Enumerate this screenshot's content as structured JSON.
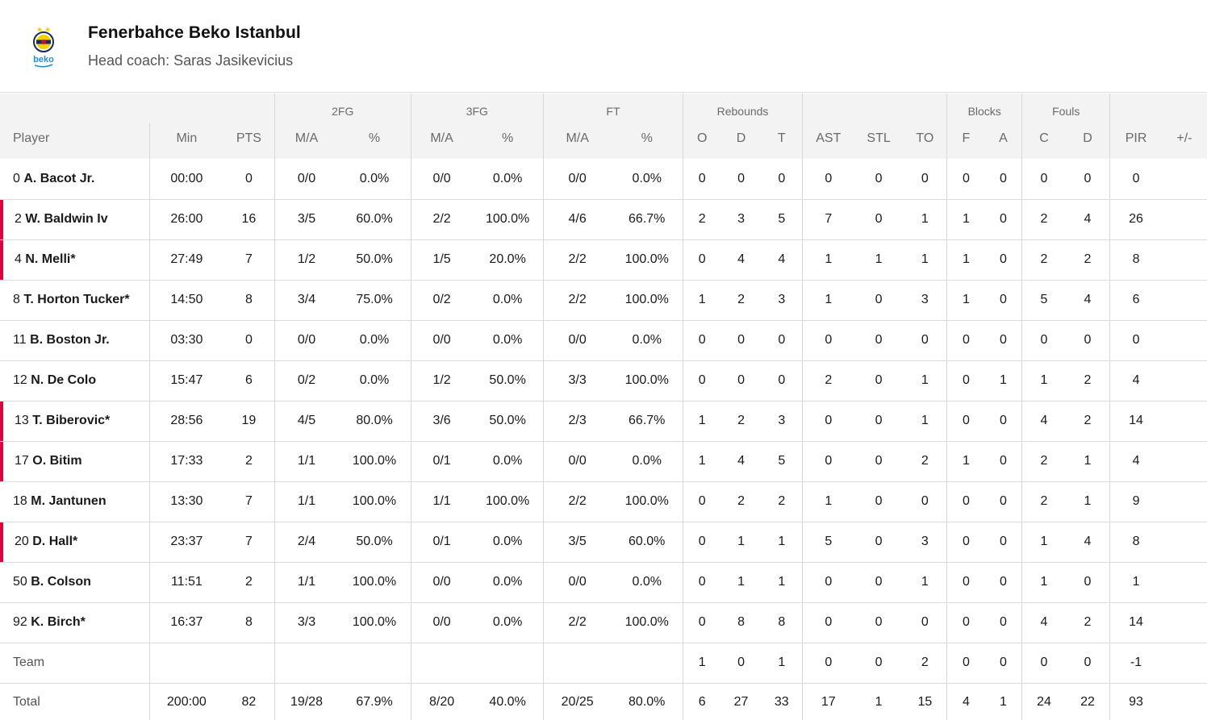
{
  "team": {
    "name": "Fenerbahce Beko Istanbul",
    "coach": "Head coach: Saras Jasikevicius",
    "logo_text": "beko"
  },
  "colors": {
    "starter_marker": "#e4003b",
    "header_bg": "#f3f3f3",
    "logo_navy": "#1b2a5e",
    "logo_yellow": "#f5d000",
    "logo_blue": "#1f8fd6"
  },
  "groups": {
    "fg2": "2FG",
    "fg3": "3FG",
    "ft": "FT",
    "rebounds": "Rebounds",
    "blocks": "Blocks",
    "fouls": "Fouls"
  },
  "columns": [
    "Player",
    "Min",
    "PTS",
    "M/A",
    "%",
    "M/A",
    "%",
    "M/A",
    "%",
    "O",
    "D",
    "T",
    "AST",
    "STL",
    "TO",
    "F",
    "A",
    "C",
    "D",
    "PIR",
    "+/-"
  ],
  "players": [
    {
      "num": "0",
      "name": "A. Bacot Jr.",
      "starter": false,
      "stats": [
        "00:00",
        "0",
        "0/0",
        "0.0%",
        "0/0",
        "0.0%",
        "0/0",
        "0.0%",
        "0",
        "0",
        "0",
        "0",
        "0",
        "0",
        "0",
        "0",
        "0",
        "0",
        "0",
        ""
      ]
    },
    {
      "num": "2",
      "name": "W. Baldwin Iv",
      "starter": true,
      "stats": [
        "26:00",
        "16",
        "3/5",
        "60.0%",
        "2/2",
        "100.0%",
        "4/6",
        "66.7%",
        "2",
        "3",
        "5",
        "7",
        "0",
        "1",
        "1",
        "0",
        "2",
        "4",
        "26",
        ""
      ]
    },
    {
      "num": "4",
      "name": "N. Melli*",
      "starter": true,
      "stats": [
        "27:49",
        "7",
        "1/2",
        "50.0%",
        "1/5",
        "20.0%",
        "2/2",
        "100.0%",
        "0",
        "4",
        "4",
        "1",
        "1",
        "1",
        "1",
        "0",
        "2",
        "2",
        "8",
        ""
      ]
    },
    {
      "num": "8",
      "name": "T. Horton Tucker*",
      "starter": false,
      "stats": [
        "14:50",
        "8",
        "3/4",
        "75.0%",
        "0/2",
        "0.0%",
        "2/2",
        "100.0%",
        "1",
        "2",
        "3",
        "1",
        "0",
        "3",
        "1",
        "0",
        "5",
        "4",
        "6",
        ""
      ]
    },
    {
      "num": "11",
      "name": "B. Boston Jr.",
      "starter": false,
      "stats": [
        "03:30",
        "0",
        "0/0",
        "0.0%",
        "0/0",
        "0.0%",
        "0/0",
        "0.0%",
        "0",
        "0",
        "0",
        "0",
        "0",
        "0",
        "0",
        "0",
        "0",
        "0",
        "0",
        ""
      ]
    },
    {
      "num": "12",
      "name": "N. De Colo",
      "starter": false,
      "stats": [
        "15:47",
        "6",
        "0/2",
        "0.0%",
        "1/2",
        "50.0%",
        "3/3",
        "100.0%",
        "0",
        "0",
        "0",
        "2",
        "0",
        "1",
        "0",
        "1",
        "1",
        "2",
        "4",
        ""
      ]
    },
    {
      "num": "13",
      "name": "T. Biberovic*",
      "starter": true,
      "stats": [
        "28:56",
        "19",
        "4/5",
        "80.0%",
        "3/6",
        "50.0%",
        "2/3",
        "66.7%",
        "1",
        "2",
        "3",
        "0",
        "0",
        "1",
        "0",
        "0",
        "4",
        "2",
        "14",
        ""
      ]
    },
    {
      "num": "17",
      "name": "O. Bitim",
      "starter": true,
      "stats": [
        "17:33",
        "2",
        "1/1",
        "100.0%",
        "0/1",
        "0.0%",
        "0/0",
        "0.0%",
        "1",
        "4",
        "5",
        "0",
        "0",
        "2",
        "1",
        "0",
        "2",
        "1",
        "4",
        ""
      ]
    },
    {
      "num": "18",
      "name": "M. Jantunen",
      "starter": false,
      "stats": [
        "13:30",
        "7",
        "1/1",
        "100.0%",
        "1/1",
        "100.0%",
        "2/2",
        "100.0%",
        "0",
        "2",
        "2",
        "1",
        "0",
        "0",
        "0",
        "0",
        "2",
        "1",
        "9",
        ""
      ]
    },
    {
      "num": "20",
      "name": "D. Hall*",
      "starter": true,
      "stats": [
        "23:37",
        "7",
        "2/4",
        "50.0%",
        "0/1",
        "0.0%",
        "3/5",
        "60.0%",
        "0",
        "1",
        "1",
        "5",
        "0",
        "3",
        "0",
        "0",
        "1",
        "4",
        "8",
        ""
      ]
    },
    {
      "num": "50",
      "name": "B. Colson",
      "starter": false,
      "stats": [
        "11:51",
        "2",
        "1/1",
        "100.0%",
        "0/0",
        "0.0%",
        "0/0",
        "0.0%",
        "0",
        "1",
        "1",
        "0",
        "0",
        "1",
        "0",
        "0",
        "1",
        "0",
        "1",
        ""
      ]
    },
    {
      "num": "92",
      "name": "K. Birch*",
      "starter": false,
      "stats": [
        "16:37",
        "8",
        "3/3",
        "100.0%",
        "0/0",
        "0.0%",
        "2/2",
        "100.0%",
        "0",
        "8",
        "8",
        "0",
        "0",
        "0",
        "0",
        "0",
        "4",
        "2",
        "14",
        ""
      ]
    }
  ],
  "team_row": {
    "label": "Team",
    "stats": [
      "",
      "",
      "",
      "",
      "",
      "",
      "",
      "",
      "1",
      "0",
      "1",
      "0",
      "0",
      "2",
      "0",
      "0",
      "0",
      "0",
      "-1",
      ""
    ]
  },
  "total_row": {
    "label": "Total",
    "stats": [
      "200:00",
      "82",
      "19/28",
      "67.9%",
      "8/20",
      "40.0%",
      "20/25",
      "80.0%",
      "6",
      "27",
      "33",
      "17",
      "1",
      "15",
      "4",
      "1",
      "24",
      "22",
      "93",
      ""
    ]
  }
}
